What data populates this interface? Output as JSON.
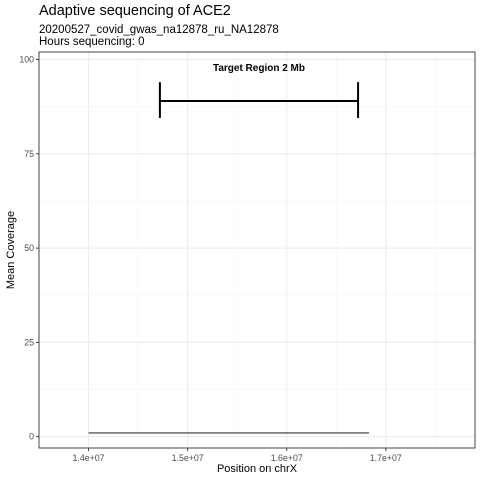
{
  "chart_data": {
    "type": "line",
    "title": "Adaptive sequencing of ACE2",
    "subtitle": [
      "20200527_covid_gwas_na12878_ru_NA12878",
      "Hours sequencing: 0"
    ],
    "xlabel": "Position on chrX",
    "ylabel": "Mean Coverage",
    "xlim": [
      13500000,
      17900000
    ],
    "ylim": [
      -3,
      102
    ],
    "x_ticks": [
      14000000,
      15000000,
      16000000,
      17000000
    ],
    "x_tick_labels": [
      "1.4e+07",
      "1.5e+07",
      "1.6e+07",
      "1.7e+07"
    ],
    "y_ticks": [
      0,
      25,
      50,
      75,
      100
    ],
    "y_tick_labels": [
      "0",
      "25",
      "50",
      "75",
      "100"
    ],
    "grid": true,
    "legend": "none",
    "series": [
      {
        "x": [
          14000000,
          16830000
        ],
        "y": [
          1,
          1
        ]
      }
    ],
    "annotations": [
      {
        "type": "errorbar-h",
        "text": "Target Region 2 Mb",
        "x_start": 14720000,
        "x_end": 16720000,
        "y": 89,
        "y_min": 84.5,
        "y_max": 94,
        "label_y": 97
      }
    ],
    "colors": {
      "line": "#595959",
      "panel_border": "#333333",
      "grid_major": "#ebebeb",
      "grid_minor": "#f5f5f5",
      "tick": "#333333"
    }
  }
}
